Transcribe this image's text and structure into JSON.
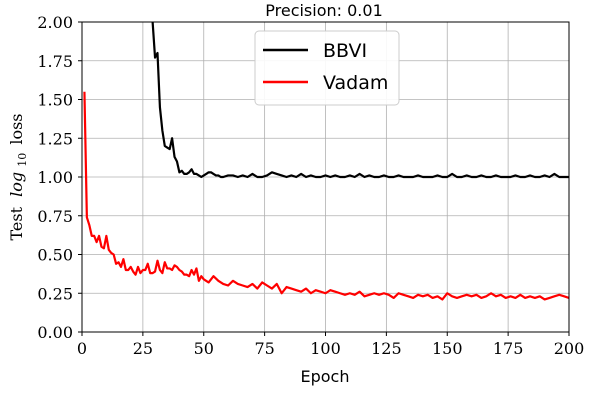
{
  "chart_data": {
    "type": "line",
    "title": "Precision: 0.01",
    "xlabel": "Epoch",
    "ylabel": "Test log10 loss",
    "ylabel_parts": {
      "prefix": "Test",
      "main": "log",
      "sub": "10",
      "suffix": "loss"
    },
    "xlim": [
      0,
      200
    ],
    "ylim": [
      0.0,
      2.0
    ],
    "x_ticks": [
      0,
      25,
      50,
      75,
      100,
      125,
      150,
      175,
      200
    ],
    "y_ticks": [
      0.0,
      0.25,
      0.5,
      0.75,
      1.0,
      1.25,
      1.5,
      1.75,
      2.0
    ],
    "x_tick_labels": [
      "0",
      "25",
      "50",
      "75",
      "100",
      "125",
      "150",
      "175",
      "200"
    ],
    "y_tick_labels": [
      "0.00",
      "0.25",
      "0.50",
      "0.75",
      "1.00",
      "1.25",
      "1.50",
      "1.75",
      "2.00"
    ],
    "grid": true,
    "legend": "top-center",
    "series": [
      {
        "name": "BBVI",
        "color": "#000000",
        "x": [
          29,
          30,
          31,
          32,
          33,
          34,
          35,
          36,
          37,
          38,
          39,
          40,
          41,
          42,
          43,
          44,
          45,
          46,
          47,
          48,
          49,
          50,
          51,
          52,
          53,
          54,
          55,
          56,
          57,
          58,
          60,
          62,
          64,
          66,
          68,
          70,
          72,
          74,
          76,
          78,
          80,
          82,
          84,
          86,
          88,
          90,
          92,
          94,
          96,
          98,
          100,
          102,
          104,
          106,
          108,
          110,
          112,
          114,
          116,
          118,
          120,
          122,
          124,
          126,
          128,
          130,
          132,
          134,
          136,
          138,
          140,
          142,
          144,
          146,
          148,
          150,
          152,
          154,
          156,
          158,
          160,
          162,
          164,
          166,
          168,
          170,
          172,
          174,
          176,
          178,
          180,
          182,
          184,
          186,
          188,
          190,
          192,
          194,
          196,
          198,
          200
        ],
        "y": [
          2.0,
          1.77,
          1.8,
          1.45,
          1.3,
          1.2,
          1.19,
          1.18,
          1.25,
          1.13,
          1.1,
          1.03,
          1.04,
          1.02,
          1.02,
          1.03,
          1.05,
          1.02,
          1.02,
          1.01,
          1.0,
          1.01,
          1.02,
          1.03,
          1.03,
          1.02,
          1.01,
          1.01,
          1.0,
          1.0,
          1.01,
          1.01,
          1.0,
          1.01,
          1.0,
          1.02,
          1.0,
          1.0,
          1.01,
          1.03,
          1.02,
          1.01,
          1.0,
          1.01,
          1.0,
          1.02,
          1.0,
          1.01,
          1.0,
          1.0,
          1.01,
          1.0,
          1.01,
          1.0,
          1.0,
          1.01,
          1.0,
          1.02,
          1.0,
          1.01,
          1.0,
          1.0,
          1.01,
          1.0,
          1.0,
          1.01,
          1.0,
          1.0,
          1.0,
          1.01,
          1.0,
          1.0,
          1.0,
          1.01,
          1.0,
          1.0,
          1.02,
          1.0,
          1.0,
          1.01,
          1.0,
          1.0,
          1.01,
          1.0,
          1.0,
          1.01,
          1.0,
          1.0,
          1.0,
          1.01,
          1.0,
          1.0,
          1.01,
          1.0,
          1.0,
          1.01,
          1.0,
          1.02,
          1.0,
          1.0,
          1.0
        ]
      },
      {
        "name": "Vadam",
        "color": "#ff0000",
        "x": [
          1,
          2,
          3,
          4,
          5,
          6,
          7,
          8,
          9,
          10,
          11,
          12,
          13,
          14,
          15,
          16,
          17,
          18,
          19,
          20,
          21,
          22,
          23,
          24,
          25,
          26,
          27,
          28,
          29,
          30,
          31,
          32,
          33,
          34,
          35,
          36,
          37,
          38,
          39,
          40,
          41,
          42,
          43,
          44,
          45,
          46,
          47,
          48,
          49,
          50,
          52,
          54,
          56,
          58,
          60,
          62,
          64,
          66,
          68,
          70,
          72,
          74,
          76,
          78,
          80,
          82,
          84,
          86,
          88,
          90,
          92,
          94,
          96,
          98,
          100,
          102,
          104,
          106,
          108,
          110,
          112,
          114,
          116,
          118,
          120,
          122,
          124,
          126,
          128,
          130,
          132,
          134,
          136,
          138,
          140,
          142,
          144,
          146,
          148,
          150,
          152,
          154,
          156,
          158,
          160,
          162,
          164,
          166,
          168,
          170,
          172,
          174,
          176,
          178,
          180,
          182,
          184,
          186,
          188,
          190,
          192,
          194,
          196,
          198,
          200
        ],
        "y": [
          1.55,
          0.74,
          0.69,
          0.62,
          0.62,
          0.58,
          0.62,
          0.55,
          0.54,
          0.62,
          0.53,
          0.51,
          0.5,
          0.44,
          0.45,
          0.42,
          0.47,
          0.4,
          0.4,
          0.42,
          0.39,
          0.37,
          0.42,
          0.38,
          0.4,
          0.4,
          0.44,
          0.38,
          0.38,
          0.39,
          0.46,
          0.4,
          0.38,
          0.45,
          0.41,
          0.41,
          0.4,
          0.43,
          0.42,
          0.4,
          0.39,
          0.37,
          0.37,
          0.36,
          0.4,
          0.37,
          0.41,
          0.33,
          0.36,
          0.34,
          0.32,
          0.36,
          0.33,
          0.31,
          0.3,
          0.33,
          0.31,
          0.3,
          0.29,
          0.31,
          0.28,
          0.32,
          0.3,
          0.28,
          0.31,
          0.25,
          0.29,
          0.28,
          0.27,
          0.26,
          0.28,
          0.25,
          0.27,
          0.26,
          0.25,
          0.27,
          0.26,
          0.25,
          0.24,
          0.25,
          0.24,
          0.26,
          0.23,
          0.24,
          0.25,
          0.24,
          0.25,
          0.24,
          0.22,
          0.25,
          0.24,
          0.23,
          0.22,
          0.24,
          0.23,
          0.24,
          0.22,
          0.23,
          0.21,
          0.25,
          0.23,
          0.22,
          0.23,
          0.24,
          0.23,
          0.24,
          0.22,
          0.23,
          0.25,
          0.23,
          0.24,
          0.22,
          0.23,
          0.22,
          0.24,
          0.22,
          0.23,
          0.22,
          0.23,
          0.21,
          0.22,
          0.23,
          0.24,
          0.23,
          0.22
        ]
      }
    ]
  }
}
